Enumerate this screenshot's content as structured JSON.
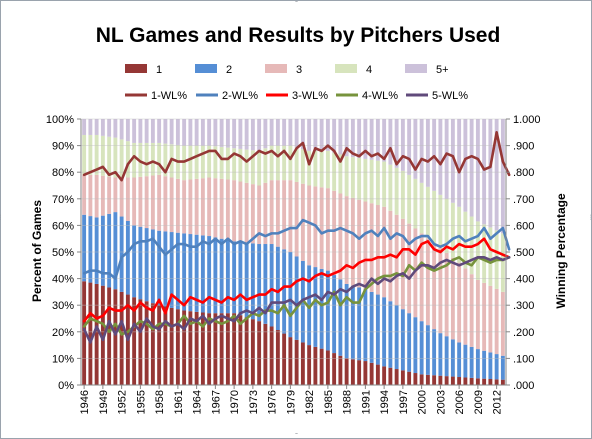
{
  "chart_data": {
    "type": "bar",
    "subtype": "stacked-percent bar with line overlay (secondary axis)",
    "title": "NL Games and Results by Pitchers Used",
    "ylabel": "Percent of Games",
    "y2label": "Winning Percentage",
    "ylim": [
      0,
      100
    ],
    "y2lim": [
      0,
      1
    ],
    "yticks": [
      "0%",
      "10%",
      "20%",
      "30%",
      "40%",
      "50%",
      "60%",
      "70%",
      "80%",
      "90%",
      "100%"
    ],
    "y2ticks": [
      ".000",
      ".100",
      ".200",
      ".300",
      ".400",
      ".500",
      ".600",
      ".700",
      ".800",
      ".900",
      "1.000"
    ],
    "xtick_labels": [
      "1946",
      "1949",
      "1952",
      "1955",
      "1958",
      "1961",
      "1964",
      "1967",
      "1970",
      "1973",
      "1976",
      "1979",
      "1982",
      "1985",
      "1988",
      "1991",
      "1994",
      "1997",
      "2000",
      "2003",
      "2006",
      "2009",
      "2012"
    ],
    "x_start": 1946,
    "x_end": 2013,
    "grid": true,
    "legend_position": "top",
    "bar_series": [
      {
        "name": "1",
        "color": "#953735",
        "anchors": [
          [
            1946,
            39
          ],
          [
            1948,
            38
          ],
          [
            1951,
            36
          ],
          [
            1954,
            33
          ],
          [
            1958,
            30
          ],
          [
            1962,
            28
          ],
          [
            1966,
            27
          ],
          [
            1970,
            27
          ],
          [
            1974,
            24
          ],
          [
            1976,
            22
          ],
          [
            1979,
            18
          ],
          [
            1982,
            15
          ],
          [
            1985,
            13
          ],
          [
            1988,
            10
          ],
          [
            1991,
            9
          ],
          [
            1994,
            7
          ],
          [
            1997,
            5.5
          ],
          [
            2000,
            4
          ],
          [
            2003,
            3.5
          ],
          [
            2006,
            3
          ],
          [
            2009,
            2.5
          ],
          [
            2013,
            2
          ]
        ]
      },
      {
        "name": "2",
        "color": "#558ed5",
        "anchors": [
          [
            1946,
            25
          ],
          [
            1948,
            25
          ],
          [
            1951,
            29
          ],
          [
            1954,
            27
          ],
          [
            1958,
            28
          ],
          [
            1962,
            29
          ],
          [
            1966,
            29
          ],
          [
            1970,
            27
          ],
          [
            1974,
            29
          ],
          [
            1976,
            31
          ],
          [
            1979,
            32
          ],
          [
            1982,
            30
          ],
          [
            1985,
            30
          ],
          [
            1988,
            28
          ],
          [
            1991,
            27
          ],
          [
            1994,
            26
          ],
          [
            1997,
            23
          ],
          [
            2000,
            20
          ],
          [
            2003,
            16
          ],
          [
            2006,
            13
          ],
          [
            2009,
            11
          ],
          [
            2013,
            9
          ]
        ]
      },
      {
        "name": "3",
        "color": "#e6b9b8",
        "anchors": [
          [
            1946,
            15
          ],
          [
            1948,
            16
          ],
          [
            1951,
            13
          ],
          [
            1954,
            18
          ],
          [
            1958,
            21
          ],
          [
            1962,
            20
          ],
          [
            1966,
            22
          ],
          [
            1970,
            23
          ],
          [
            1974,
            22
          ],
          [
            1976,
            24
          ],
          [
            1979,
            27
          ],
          [
            1982,
            30
          ],
          [
            1985,
            31
          ],
          [
            1988,
            33
          ],
          [
            1991,
            33
          ],
          [
            1994,
            34
          ],
          [
            1997,
            34
          ],
          [
            2000,
            33
          ],
          [
            2003,
            32
          ],
          [
            2006,
            30
          ],
          [
            2009,
            26
          ],
          [
            2013,
            24
          ]
        ]
      },
      {
        "name": "4",
        "color": "#d7e4bd",
        "anchors": [
          [
            1946,
            15
          ],
          [
            1948,
            15
          ],
          [
            1951,
            15
          ],
          [
            1954,
            13
          ],
          [
            1958,
            12
          ],
          [
            1962,
            13
          ],
          [
            1966,
            12
          ],
          [
            1970,
            12
          ],
          [
            1974,
            13
          ],
          [
            1976,
            13
          ],
          [
            1979,
            13
          ],
          [
            1982,
            13
          ],
          [
            1985,
            14
          ],
          [
            1988,
            15
          ],
          [
            1991,
            16
          ],
          [
            1994,
            17
          ],
          [
            1997,
            18
          ],
          [
            2000,
            19
          ],
          [
            2003,
            20
          ],
          [
            2006,
            21
          ],
          [
            2009,
            22
          ],
          [
            2013,
            22
          ]
        ]
      }
    ],
    "bar_remainder_series": {
      "name": "5+",
      "color": "#ccc1da"
    },
    "line_series": [
      {
        "name": "1-WL%",
        "color": "#953735",
        "values": [
          0.79,
          0.8,
          0.81,
          0.82,
          0.79,
          0.8,
          0.77,
          0.83,
          0.86,
          0.84,
          0.83,
          0.84,
          0.83,
          0.8,
          0.85,
          0.84,
          0.84,
          0.85,
          0.86,
          0.87,
          0.88,
          0.88,
          0.85,
          0.85,
          0.87,
          0.86,
          0.84,
          0.86,
          0.88,
          0.87,
          0.88,
          0.86,
          0.88,
          0.85,
          0.89,
          0.91,
          0.83,
          0.89,
          0.88,
          0.9,
          0.88,
          0.84,
          0.89,
          0.87,
          0.86,
          0.88,
          0.86,
          0.87,
          0.85,
          0.89,
          0.83,
          0.86,
          0.85,
          0.81,
          0.85,
          0.84,
          0.86,
          0.83,
          0.87,
          0.86,
          0.8,
          0.85,
          0.86,
          0.85,
          0.81,
          0.82,
          0.95,
          0.84,
          0.79
        ]
      },
      {
        "name": "2-WL%",
        "color": "#4f81bd",
        "values": [
          0.42,
          0.43,
          0.43,
          0.42,
          0.42,
          0.4,
          0.48,
          0.5,
          0.53,
          0.54,
          0.54,
          0.55,
          0.52,
          0.49,
          0.51,
          0.53,
          0.53,
          0.52,
          0.52,
          0.54,
          0.53,
          0.55,
          0.53,
          0.55,
          0.53,
          0.54,
          0.53,
          0.55,
          0.57,
          0.56,
          0.57,
          0.57,
          0.58,
          0.59,
          0.59,
          0.62,
          0.61,
          0.6,
          0.57,
          0.58,
          0.58,
          0.59,
          0.58,
          0.57,
          0.55,
          0.57,
          0.58,
          0.56,
          0.59,
          0.55,
          0.57,
          0.56,
          0.53,
          0.55,
          0.56,
          0.56,
          0.53,
          0.52,
          0.53,
          0.55,
          0.56,
          0.54,
          0.55,
          0.56,
          0.59,
          0.55,
          0.57,
          0.59,
          0.51
        ]
      },
      {
        "name": "3-WL%",
        "color": "#ff0000",
        "values": [
          0.24,
          0.27,
          0.25,
          0.26,
          0.29,
          0.28,
          0.28,
          0.3,
          0.28,
          0.31,
          0.29,
          0.28,
          0.32,
          0.27,
          0.34,
          0.32,
          0.3,
          0.33,
          0.32,
          0.31,
          0.33,
          0.32,
          0.31,
          0.33,
          0.32,
          0.34,
          0.32,
          0.33,
          0.34,
          0.34,
          0.36,
          0.35,
          0.37,
          0.37,
          0.39,
          0.4,
          0.39,
          0.41,
          0.42,
          0.41,
          0.42,
          0.43,
          0.45,
          0.44,
          0.46,
          0.47,
          0.47,
          0.48,
          0.48,
          0.49,
          0.48,
          0.51,
          0.51,
          0.49,
          0.53,
          0.54,
          0.51,
          0.5,
          0.52,
          0.51,
          0.53,
          0.52,
          0.52,
          0.53,
          0.55,
          0.51,
          0.5,
          0.49,
          0.48
        ]
      },
      {
        "name": "4-WL%",
        "color": "#77933c",
        "values": [
          0.22,
          0.25,
          0.24,
          0.23,
          0.2,
          0.23,
          0.19,
          0.2,
          0.22,
          0.24,
          0.23,
          0.21,
          0.23,
          0.23,
          0.22,
          0.23,
          0.26,
          0.23,
          0.24,
          0.22,
          0.25,
          0.24,
          0.23,
          0.24,
          0.26,
          0.23,
          0.25,
          0.27,
          0.26,
          0.28,
          0.28,
          0.27,
          0.3,
          0.26,
          0.29,
          0.32,
          0.29,
          0.32,
          0.3,
          0.31,
          0.35,
          0.3,
          0.33,
          0.31,
          0.31,
          0.36,
          0.38,
          0.4,
          0.41,
          0.41,
          0.42,
          0.41,
          0.45,
          0.43,
          0.46,
          0.44,
          0.43,
          0.44,
          0.45,
          0.47,
          0.48,
          0.46,
          0.45,
          0.48,
          0.47,
          0.46,
          0.47,
          0.47,
          0.48
        ]
      },
      {
        "name": "5-WL%",
        "color": "#604a7b",
        "values": [
          0.21,
          0.16,
          0.22,
          0.17,
          0.24,
          0.19,
          0.24,
          0.17,
          0.23,
          0.2,
          0.25,
          0.22,
          0.21,
          0.24,
          0.22,
          0.23,
          0.21,
          0.25,
          0.24,
          0.26,
          0.23,
          0.25,
          0.26,
          0.25,
          0.24,
          0.27,
          0.28,
          0.27,
          0.29,
          0.27,
          0.31,
          0.31,
          0.31,
          0.32,
          0.3,
          0.32,
          0.33,
          0.34,
          0.32,
          0.35,
          0.34,
          0.36,
          0.35,
          0.37,
          0.38,
          0.37,
          0.4,
          0.38,
          0.4,
          0.39,
          0.41,
          0.42,
          0.4,
          0.43,
          0.45,
          0.45,
          0.44,
          0.46,
          0.47,
          0.46,
          0.45,
          0.46,
          0.47,
          0.48,
          0.48,
          0.47,
          0.48,
          0.47,
          0.48
        ]
      }
    ]
  },
  "legend": {
    "row1": [
      {
        "label": "1",
        "color": "#953735"
      },
      {
        "label": "2",
        "color": "#558ed5"
      },
      {
        "label": "3",
        "color": "#e6b9b8"
      },
      {
        "label": "4",
        "color": "#d7e4bd"
      },
      {
        "label": "5+",
        "color": "#ccc1da"
      }
    ],
    "row2": [
      {
        "label": "1-WL%",
        "color": "#953735"
      },
      {
        "label": "2-WL%",
        "color": "#4f81bd"
      },
      {
        "label": "3-WL%",
        "color": "#ff0000"
      },
      {
        "label": "4-WL%",
        "color": "#77933c"
      },
      {
        "label": "5-WL%",
        "color": "#604a7b"
      }
    ]
  },
  "frame_handle_icon": "dotted-grip"
}
